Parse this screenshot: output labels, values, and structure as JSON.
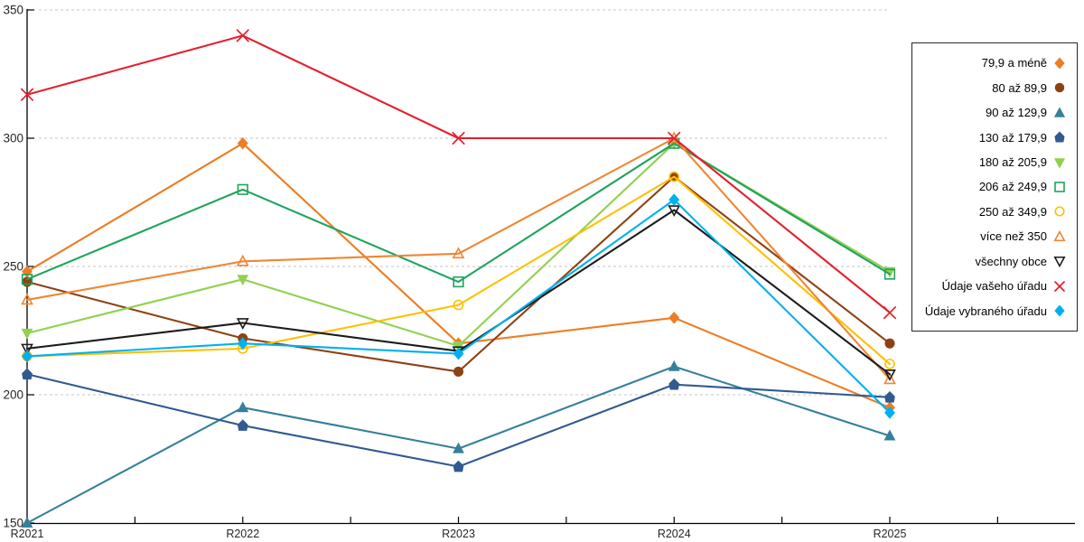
{
  "chart_data": {
    "type": "line",
    "title": "",
    "xlabel": "",
    "ylabel": "",
    "x_categories": [
      "R2021",
      "R2022",
      "R2023",
      "R2024",
      "R2025"
    ],
    "ylim": [
      150,
      350
    ],
    "yticks": [
      150,
      200,
      250,
      300,
      350
    ],
    "grid": "horizontal-dotted",
    "legend_position": "right",
    "series": [
      {
        "name": "79,9 a méně",
        "marker": "diamond",
        "fill": true,
        "color": "#ed7d23",
        "values": [
          248,
          298,
          220,
          230,
          195
        ]
      },
      {
        "name": "80 až 89,9",
        "marker": "circle",
        "fill": true,
        "color": "#8d4213",
        "values": [
          244,
          222,
          209,
          285,
          220
        ]
      },
      {
        "name": "90 až 129,9",
        "marker": "triangle-up",
        "fill": true,
        "color": "#35809b",
        "values": [
          150,
          195,
          179,
          211,
          184
        ]
      },
      {
        "name": "130 až 179,9",
        "marker": "pentagon",
        "fill": true,
        "color": "#315a91",
        "values": [
          208,
          188,
          172,
          204,
          199
        ]
      },
      {
        "name": "180 až 205,9",
        "marker": "triangle-down",
        "fill": true,
        "color": "#92d050",
        "values": [
          224,
          245,
          219,
          298,
          248
        ]
      },
      {
        "name": "206 až 249,9",
        "marker": "square",
        "fill": false,
        "color": "#1fa35c",
        "values": [
          245,
          280,
          244,
          298,
          247
        ]
      },
      {
        "name": "250 až 349,9",
        "marker": "circle",
        "fill": false,
        "color": "#ffc000",
        "values": [
          215,
          218,
          235,
          285,
          212
        ]
      },
      {
        "name": "více než 350",
        "marker": "triangle-up",
        "fill": false,
        "color": "#f08632",
        "values": [
          237,
          252,
          255,
          300,
          206
        ]
      },
      {
        "name": "všechny obce",
        "marker": "triangle-down",
        "fill": false,
        "color": "#1c1c1c",
        "values": [
          218,
          228,
          217,
          272,
          208
        ]
      },
      {
        "name": "Údaje vašeho úřadu",
        "marker": "x",
        "fill": false,
        "color": "#e3202e",
        "values": [
          317,
          340,
          300,
          300,
          232
        ]
      },
      {
        "name": "Údaje vybraného úřadu",
        "marker": "diamond",
        "fill": true,
        "color": "#00b0f0",
        "values": [
          215,
          220,
          216,
          276,
          193
        ]
      }
    ],
    "axis_text_color": "#262626",
    "gridline_color": "#c6c6c6"
  }
}
